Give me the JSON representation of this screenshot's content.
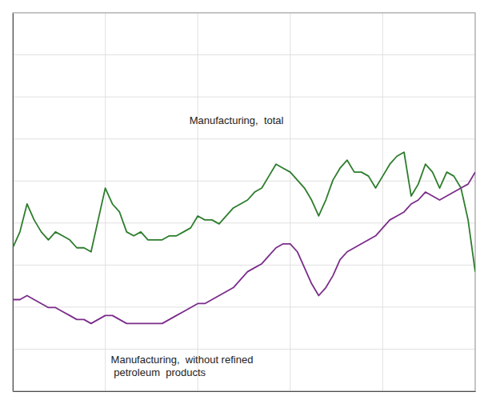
{
  "chart_data": {
    "type": "line",
    "x": [
      2000,
      2000.253846,
      2000.507692,
      2000.761538,
      2001.015385,
      2001.269231,
      2001.523077,
      2001.776923,
      2002.030769,
      2002.284615,
      2002.538462,
      2002.792308,
      2003.046154,
      2003.3,
      2003.553846,
      2003.807692,
      2004.061538,
      2004.315385,
      2004.569231,
      2004.823077,
      2005.076923,
      2005.330769,
      2005.584615,
      2005.838462,
      2006.092308,
      2006.346154,
      2006.6,
      2006.853846,
      2007.107692,
      2007.361538,
      2007.615385,
      2007.869231,
      2008.123077,
      2008.376923,
      2008.630769,
      2008.884615,
      2009.138462,
      2009.392308,
      2009.646154,
      2009.9,
      2010.153846,
      2010.407692,
      2010.661538,
      2010.915385,
      2011.169231,
      2011.423077,
      2011.676923,
      2011.930769,
      2012.184615,
      2012.438462,
      2012.692308,
      2012.946154,
      2013.2,
      2013.453846,
      2013.707692,
      2013.961538,
      2014.215385,
      2014.469231,
      2014.723077,
      2014.976923,
      2015.230769,
      2015.484615,
      2015.738462,
      2015.992308,
      2016.246154,
      2016.5
    ],
    "series": [
      {
        "color": "#2d7d2d",
        "values": [
          96,
          100,
          107,
          103,
          100,
          98,
          100,
          99,
          98,
          96,
          96,
          95,
          103,
          111,
          107,
          105,
          100,
          99,
          100,
          98,
          98,
          98,
          99,
          99,
          100,
          101,
          104,
          103,
          103,
          102,
          104,
          106,
          107,
          108,
          110,
          111,
          114,
          117,
          116,
          115,
          113,
          111,
          108,
          104,
          108,
          113,
          116,
          118,
          115,
          115,
          114,
          111,
          114,
          117,
          119,
          120,
          109,
          112,
          117,
          115,
          111,
          115,
          114,
          111,
          103,
          90
        ]
      },
      {
        "color": "#7b2d8b",
        "values": [
          83,
          83,
          84,
          83,
          82,
          81,
          81,
          80,
          79,
          78,
          78,
          77,
          78,
          79,
          79,
          78,
          77,
          77,
          77,
          77,
          77,
          77,
          78,
          79,
          80,
          81,
          82,
          82,
          83,
          84,
          85,
          86,
          88,
          90,
          91,
          92,
          94,
          96,
          97,
          97,
          95,
          91,
          87,
          84,
          86,
          89,
          93,
          95,
          96,
          97,
          98,
          99,
          101,
          103,
          104,
          105,
          107,
          108,
          110,
          109,
          108,
          109,
          110,
          111,
          112,
          115
        ]
      }
    ],
    "xlim": [
      2000,
      2016.5
    ],
    "ylim": [
      60,
      155
    ],
    "xticks": [
      2000,
      2003.3,
      2006.6,
      2009.9,
      2013.2,
      2016.5
    ],
    "yticks": [
      60,
      70.55555555555556,
      81.11111111111111,
      91.66666666666667,
      102.22222222222223,
      112.77777777777777,
      123.33333333333333,
      133.88888888888889,
      144.44444444444446,
      155
    ],
    "grid": true,
    "tick_labels": false,
    "annotations": [
      {
        "text": "Manufacturing,  total",
        "x": 2006.3,
        "y": 127
      },
      {
        "text": "Manufacturing,  without refined\n petroleum  products",
        "x": 2003.5,
        "y": 67
      }
    ]
  }
}
